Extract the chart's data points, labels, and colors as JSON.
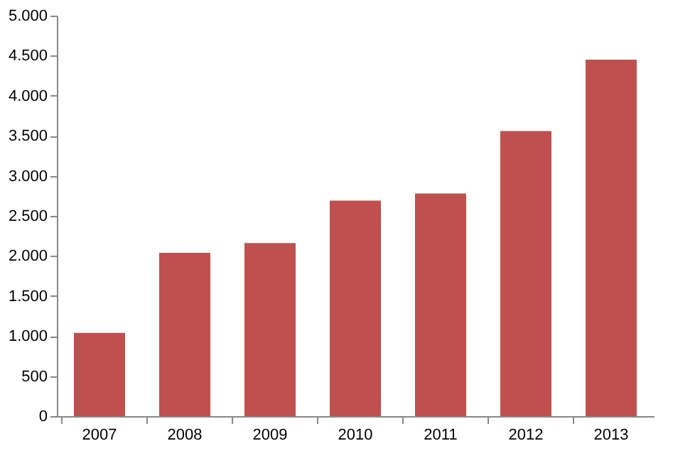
{
  "chart_data": {
    "type": "bar",
    "categories": [
      "2007",
      "2008",
      "2009",
      "2010",
      "2011",
      "2012",
      "2013"
    ],
    "values": [
      1040,
      2040,
      2160,
      2690,
      2780,
      3560,
      4450
    ],
    "color": "#c0504d",
    "ylim": [
      0,
      5000
    ],
    "yticks": [
      0,
      {
        "value": 500,
        "label": "500"
      },
      {
        "value": 1000,
        "label": "1.000"
      },
      {
        "value": 1500,
        "label": "1.500"
      },
      {
        "value": 2000,
        "label": "2.000"
      },
      {
        "value": 2500,
        "label": "2.500"
      },
      {
        "value": 3000,
        "label": "3.000"
      },
      {
        "value": 3500,
        "label": "3.500"
      },
      {
        "value": 4000,
        "label": "4.000"
      },
      {
        "value": 4500,
        "label": "4.500"
      },
      {
        "value": 5000,
        "label": "5.000"
      }
    ],
    "grid": false
  }
}
